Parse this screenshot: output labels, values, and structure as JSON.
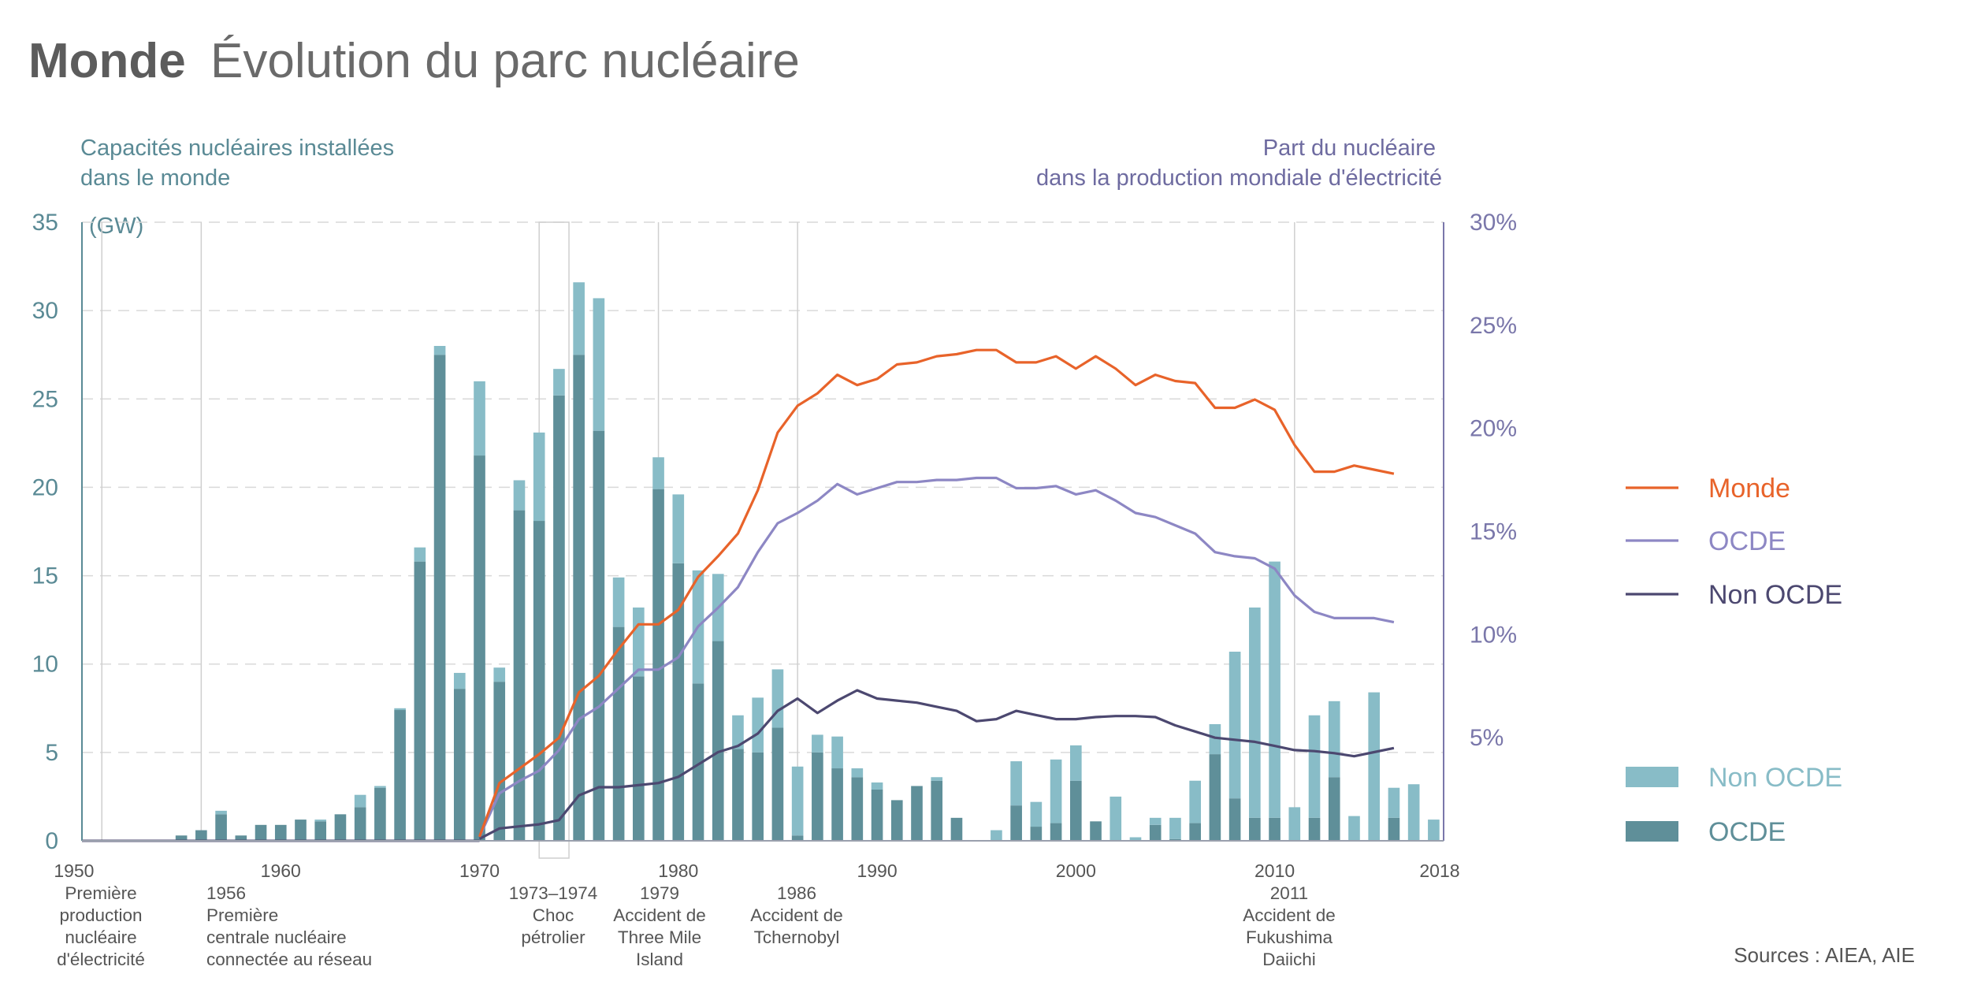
{
  "title": {
    "bold": "Monde",
    "rest": "Évolution du parc nucléaire"
  },
  "left_axis_title": [
    "Capacités nucléaires installées",
    "dans le monde"
  ],
  "right_axis_title": [
    "Part du nucléaire",
    "dans la production mondiale d'électricité"
  ],
  "unit": "(GW)",
  "source": "Sources : AIEA, AIE",
  "colors": {
    "monde": "#e8632a",
    "ocde_line": "#8d87c4",
    "non_ocde_line": "#4c4870",
    "bar_non_ocde": "#88bcc7",
    "bar_ocde": "#5f8f99",
    "axis_left": "#5a8a95",
    "axis_right": "#7a77aa"
  },
  "chart_data": {
    "type": "bar",
    "xlabel": "",
    "ylabel": "Capacités nucléaires installées dans le monde",
    "ylim": [
      0,
      35
    ],
    "y2lim": [
      0,
      30
    ],
    "yticks": [
      "0",
      "5",
      "10",
      "15",
      "20",
      "25",
      "30",
      "35"
    ],
    "y2ticks": [
      "5%",
      "10%",
      "15%",
      "20%",
      "25%",
      "30%"
    ],
    "year_ticks": [
      "1950",
      "1960",
      "1970",
      "1980",
      "1990",
      "2000",
      "2010",
      "2018"
    ],
    "legend": {
      "lines": [
        "Monde",
        "OCDE",
        "Non OCDE"
      ],
      "bars": [
        "Non OCDE",
        "OCDE"
      ]
    },
    "events": [
      {
        "year": 1951,
        "label": [
          "1950",
          "Première",
          "production",
          "nucléaire",
          "d'électricité"
        ]
      },
      {
        "year": 1956,
        "label": [
          "1956",
          "Première",
          "centrale nucléaire",
          "connectée au réseau"
        ]
      },
      {
        "year": 1973.5,
        "label": [
          "1973–1974",
          "Choc",
          "pétrolier"
        ]
      },
      {
        "year": 1979,
        "label": [
          "1979",
          "Accident de",
          "Three Mile",
          "Island"
        ]
      },
      {
        "year": 1986,
        "label": [
          "1986",
          "Accident de",
          "Tchernobyl"
        ]
      },
      {
        "year": 2011,
        "label": [
          "2011",
          "Accident de",
          "Fukushima",
          "Daiichi"
        ]
      }
    ],
    "years": [
      1950,
      1951,
      1952,
      1953,
      1954,
      1955,
      1956,
      1957,
      1958,
      1959,
      1960,
      1961,
      1962,
      1963,
      1964,
      1965,
      1966,
      1967,
      1968,
      1969,
      1970,
      1971,
      1972,
      1973,
      1974,
      1975,
      1976,
      1977,
      1978,
      1979,
      1980,
      1981,
      1982,
      1983,
      1984,
      1985,
      1986,
      1987,
      1988,
      1989,
      1990,
      1991,
      1992,
      1993,
      1994,
      1995,
      1996,
      1997,
      1998,
      1999,
      2000,
      2001,
      2002,
      2003,
      2004,
      2005,
      2006,
      2007,
      2008,
      2009,
      2010,
      2011,
      2012,
      2013,
      2014,
      2015,
      2016,
      2017,
      2018
    ],
    "series": [
      {
        "name": "OCDE",
        "kind": "bar",
        "values": [
          0,
          0,
          0,
          0.05,
          0,
          0.3,
          0.6,
          1.5,
          0.3,
          0.9,
          0.9,
          1.2,
          1.1,
          1.5,
          1.9,
          3.0,
          7.4,
          15.8,
          27.5,
          8.6,
          21.8,
          9.0,
          18.7,
          18.1,
          25.2,
          27.5,
          23.2,
          12.1,
          9.3,
          19.9,
          15.7,
          8.9,
          11.3,
          5.2,
          5.0,
          6.4,
          0.3,
          5.0,
          4.1,
          3.6,
          2.9,
          2.3,
          3.1,
          3.4,
          1.3,
          0,
          0,
          2.0,
          0.8,
          1.0,
          3.4,
          1.1,
          0,
          0,
          0.9,
          0.1,
          1.0,
          4.9,
          2.4,
          1.3,
          1.3,
          0,
          1.3,
          3.6,
          0,
          0,
          1.3,
          0,
          0
        ]
      },
      {
        "name": "Non OCDE",
        "kind": "bar",
        "values": [
          0,
          0,
          0,
          0,
          0,
          0,
          0,
          0.2,
          0,
          0,
          0,
          0,
          0.1,
          0,
          0.7,
          0.1,
          0.1,
          0.8,
          0.5,
          0.9,
          4.2,
          0.8,
          1.7,
          5.0,
          1.5,
          4.1,
          7.5,
          2.8,
          3.9,
          1.8,
          3.9,
          6.4,
          3.8,
          1.9,
          3.1,
          3.3,
          3.9,
          1.0,
          1.8,
          0.5,
          0.4,
          0,
          0,
          0.2,
          0,
          0,
          0.6,
          2.5,
          1.4,
          3.6,
          2.0,
          0,
          2.5,
          0.2,
          0.4,
          1.2,
          2.4,
          1.7,
          8.3,
          11.9,
          14.5,
          1.9,
          5.8,
          4.3,
          1.4,
          8.4,
          1.7,
          3.2,
          1.2
        ]
      },
      {
        "name": "Monde",
        "kind": "line",
        "axis": "right",
        "x": [
          1970,
          1971,
          1972,
          1973,
          1974,
          1975,
          1976,
          1977,
          1978,
          1979,
          1980,
          1981,
          1982,
          1983,
          1984,
          1985,
          1986,
          1987,
          1988,
          1989,
          1990,
          1991,
          1992,
          1993,
          1994,
          1995,
          1996,
          1997,
          1998,
          1999,
          2000,
          2001,
          2002,
          2003,
          2004,
          2005,
          2006,
          2007,
          2008,
          2009,
          2010,
          2011,
          2012,
          2013,
          2014,
          2015,
          2016
        ],
        "values": [
          0.2,
          2.8,
          3.5,
          4.2,
          5.0,
          7.2,
          8.0,
          9.3,
          10.5,
          10.5,
          11.2,
          12.8,
          13.8,
          14.9,
          17.0,
          19.8,
          21.1,
          21.7,
          22.6,
          22.1,
          22.4,
          23.1,
          23.2,
          23.5,
          23.6,
          23.8,
          23.8,
          23.2,
          23.2,
          23.5,
          22.9,
          23.5,
          22.9,
          22.1,
          22.6,
          22.3,
          22.2,
          21.0,
          21.0,
          21.4,
          20.9,
          19.2,
          17.9,
          17.9,
          18.2,
          18.0,
          17.8
        ]
      },
      {
        "name": "OCDE",
        "kind": "line",
        "axis": "right",
        "x": [
          1970,
          1971,
          1972,
          1973,
          1974,
          1975,
          1976,
          1977,
          1978,
          1979,
          1980,
          1981,
          1982,
          1983,
          1984,
          1985,
          1986,
          1987,
          1988,
          1989,
          1990,
          1991,
          1992,
          1993,
          1994,
          1995,
          1996,
          1997,
          1998,
          1999,
          2000,
          2001,
          2002,
          2003,
          2004,
          2005,
          2006,
          2007,
          2008,
          2009,
          2010,
          2011,
          2012,
          2013,
          2014,
          2015,
          2016
        ],
        "values": [
          0.2,
          2.3,
          2.9,
          3.4,
          4.4,
          5.9,
          6.5,
          7.4,
          8.3,
          8.3,
          8.9,
          10.4,
          11.3,
          12.3,
          14.0,
          15.4,
          15.9,
          16.5,
          17.3,
          16.8,
          17.1,
          17.4,
          17.4,
          17.5,
          17.5,
          17.6,
          17.6,
          17.1,
          17.1,
          17.2,
          16.8,
          17.0,
          16.5,
          15.9,
          15.7,
          15.3,
          14.9,
          14.0,
          13.8,
          13.7,
          13.2,
          11.9,
          11.1,
          10.8,
          10.8,
          10.8,
          10.6
        ]
      },
      {
        "name": "Non OCDE",
        "kind": "line",
        "axis": "right",
        "x": [
          1970,
          1971,
          1972,
          1973,
          1974,
          1975,
          1976,
          1977,
          1978,
          1979,
          1980,
          1981,
          1982,
          1983,
          1984,
          1985,
          1986,
          1987,
          1988,
          1989,
          1990,
          1991,
          1992,
          1993,
          1994,
          1995,
          1996,
          1997,
          1998,
          1999,
          2000,
          2001,
          2002,
          2003,
          2004,
          2005,
          2006,
          2007,
          2008,
          2009,
          2010,
          2011,
          2012,
          2013,
          2014,
          2015,
          2016
        ],
        "values": [
          0.1,
          0.6,
          0.7,
          0.8,
          1.0,
          2.2,
          2.6,
          2.6,
          2.7,
          2.8,
          3.1,
          3.7,
          4.3,
          4.6,
          5.2,
          6.3,
          6.9,
          6.2,
          6.8,
          7.3,
          6.9,
          6.8,
          6.7,
          6.5,
          6.3,
          5.8,
          5.9,
          6.3,
          6.1,
          5.9,
          5.9,
          6.0,
          6.05,
          6.05,
          6.0,
          5.6,
          5.3,
          5.0,
          4.9,
          4.8,
          4.6,
          4.4,
          4.35,
          4.25,
          4.1,
          4.3,
          4.5
        ]
      }
    ]
  }
}
